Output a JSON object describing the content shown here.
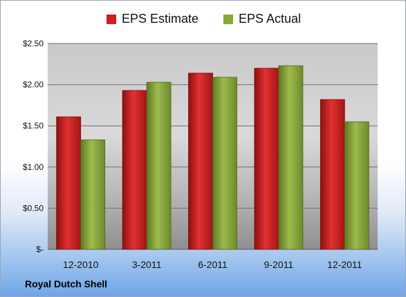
{
  "colors": {
    "estimate": "#cc1f1f",
    "actual": "#8aa83a"
  },
  "company": "Royal Dutch Shell",
  "chart_data": {
    "type": "bar",
    "categories": [
      "12-2010",
      "3-2011",
      "6-2011",
      "9-2011",
      "12-2011"
    ],
    "series": [
      {
        "name": "EPS Estimate",
        "values": [
          1.61,
          1.93,
          2.14,
          2.2,
          1.82
        ]
      },
      {
        "name": "EPS Actual",
        "values": [
          1.33,
          2.03,
          2.09,
          2.23,
          1.55
        ]
      }
    ],
    "ylim": [
      0,
      2.5
    ],
    "yticks": [
      0,
      0.5,
      1.0,
      1.5,
      2.0,
      2.5
    ],
    "ytick_labels": [
      "$-",
      "$0.50",
      "$1.00",
      "$1.50",
      "$2.00",
      "$2.50"
    ],
    "grid": true,
    "legend": "top"
  }
}
